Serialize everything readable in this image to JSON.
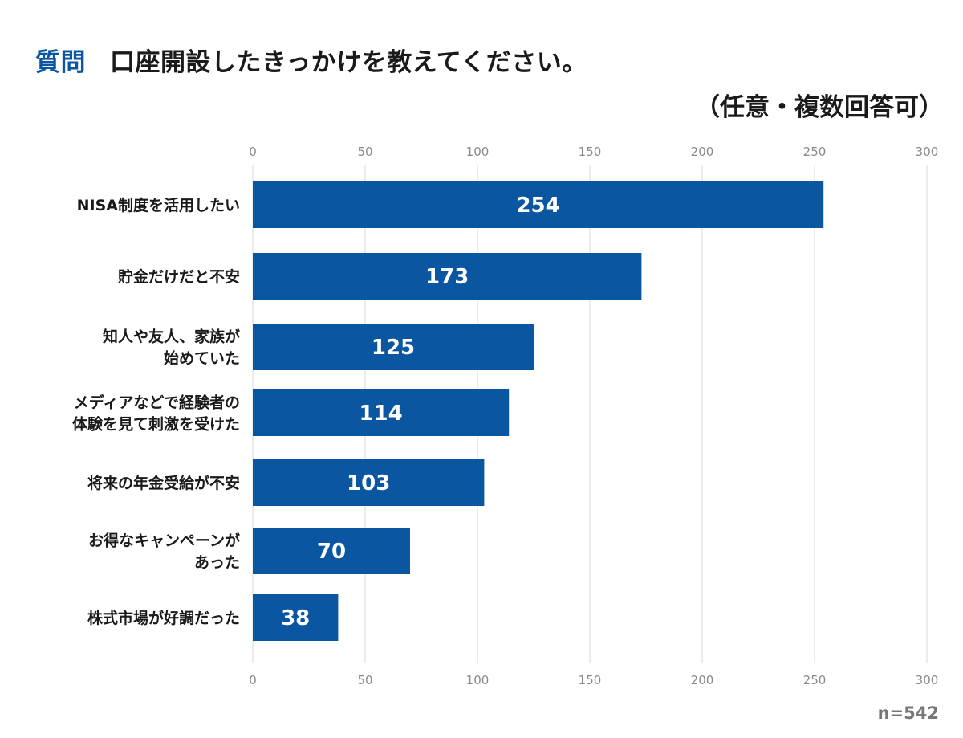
{
  "header": {
    "question_label": "質問",
    "question_text": "口座開設したきっかけを教えてください。",
    "subtitle": "（任意・複数回答可）"
  },
  "note": "n=542",
  "colors": {
    "bar": "#0a56a0",
    "accent": "#0a56a0",
    "grid": "#d9d9d9"
  },
  "chart_data": {
    "type": "bar",
    "orientation": "horizontal",
    "categories": [
      [
        "NISA制度を活用したい"
      ],
      [
        "貯金だけだと不安"
      ],
      [
        "知人や友人、家族が",
        "始めていた"
      ],
      [
        "メディアなどで経験者の",
        "体験を見て刺激を受けた"
      ],
      [
        "将来の年金受給が不安"
      ],
      [
        "お得なキャンペーンが",
        "あった"
      ],
      [
        "株式市場が好調だった"
      ]
    ],
    "values": [
      254,
      173,
      125,
      114,
      103,
      70,
      38
    ],
    "data_labels": [
      "254",
      "173",
      "125",
      "114",
      "103",
      "70",
      "38"
    ],
    "xlim": [
      0,
      300
    ],
    "ticks": [
      0,
      50,
      100,
      150,
      200,
      250,
      300
    ],
    "tick_labels": [
      "0",
      "50",
      "100",
      "150",
      "200",
      "250",
      "300"
    ],
    "axis_labels_top": true,
    "axis_labels_bottom": true,
    "grid": true,
    "legend": "none"
  }
}
